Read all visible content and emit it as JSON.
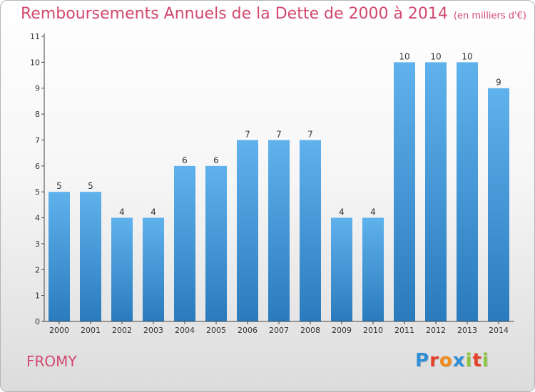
{
  "header": {
    "title": "Remboursements Annuels de la Dette de 2000 à 2014",
    "subtitle": "(en milliers d'€)"
  },
  "footer": {
    "commune": "FROMY",
    "logo_text": "Proxiti",
    "logo_colors": [
      "#2f8fd6",
      "#e5402a",
      "#f08a1c",
      "#2f8fd6",
      "#8dc63f",
      "#e5402a",
      "#8dc63f"
    ]
  },
  "colors": {
    "title": "#d2486f",
    "bar_top": "#5fb2ec",
    "bar_bottom": "#2a7bbd",
    "axis": "#444444"
  },
  "chart_data": {
    "type": "bar",
    "categories": [
      "2000",
      "2001",
      "2002",
      "2003",
      "2004",
      "2005",
      "2006",
      "2007",
      "2008",
      "2009",
      "2010",
      "2011",
      "2012",
      "2013",
      "2014"
    ],
    "values": [
      5,
      5,
      4,
      4,
      6,
      6,
      7,
      7,
      7,
      4,
      4,
      10,
      10,
      10,
      9
    ],
    "data_labels": [
      "5",
      "5",
      "4",
      "4",
      "6",
      "6",
      "7",
      "7",
      "7",
      "4",
      "4",
      "10",
      "10",
      "10",
      "9"
    ],
    "yticks": [
      "0",
      "1",
      "2",
      "3",
      "4",
      "5",
      "6",
      "7",
      "8",
      "9",
      "10",
      "11"
    ],
    "ylim": [
      0,
      11
    ],
    "grid": false,
    "legend": "none"
  }
}
